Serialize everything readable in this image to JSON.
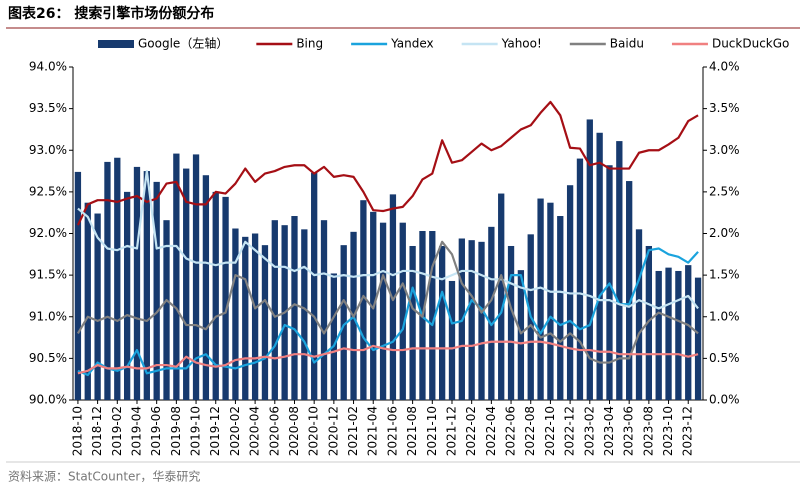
{
  "chart_data": {
    "type": "bar",
    "title": "图表26： 搜索引擎市场份额分布",
    "source": "资料来源：StatCounter，华泰研究",
    "categories": [
      "2018-10",
      null,
      "2018-12",
      null,
      "2019-02",
      null,
      "2019-04",
      null,
      "2019-06",
      null,
      "2019-08",
      null,
      "2019-10",
      null,
      "2019-12",
      null,
      "2020-02",
      null,
      "2020-04",
      null,
      "2020-06",
      null,
      "2020-08",
      null,
      "2020-10",
      null,
      "2020-12",
      null,
      "2021-02",
      null,
      "2021-04",
      null,
      "2021-06",
      null,
      "2021-08",
      null,
      "2021-10",
      null,
      "2021-12",
      null,
      "2022-02",
      null,
      "2022-04",
      null,
      "2022-06",
      null,
      "2022-08",
      null,
      "2022-10",
      null,
      "2022-12",
      null,
      "2023-02",
      null,
      "2023-04",
      null,
      "2023-06",
      null,
      "2023-08",
      null,
      "2023-10",
      null,
      "2023-12",
      null
    ],
    "series": [
      {
        "name": "Google（左轴）",
        "type": "bar",
        "axis": "y",
        "color": "#173a6e",
        "values": [
          92.74,
          92.37,
          92.24,
          92.86,
          92.91,
          92.5,
          92.8,
          92.75,
          92.62,
          92.16,
          92.96,
          92.78,
          92.95,
          92.7,
          92.5,
          92.44,
          92.06,
          91.96,
          92.0,
          91.86,
          92.16,
          92.1,
          92.21,
          92.05,
          92.73,
          92.16,
          91.52,
          91.86,
          92.02,
          92.4,
          92.26,
          92.13,
          92.47,
          92.13,
          91.85,
          92.03,
          92.03,
          91.85,
          91.43,
          91.94,
          91.92,
          91.9,
          92.08,
          92.48,
          91.85,
          91.56,
          91.99,
          92.42,
          92.37,
          92.21,
          92.58,
          92.9,
          93.37,
          93.21,
          92.82,
          93.11,
          92.63,
          92.05,
          91.85,
          91.55,
          91.59,
          91.55,
          91.62,
          91.47
        ]
      },
      {
        "name": "Bing",
        "type": "line",
        "axis": "y2",
        "color": "#a50f15",
        "values": [
          2.1,
          2.35,
          2.4,
          2.4,
          2.38,
          2.42,
          2.45,
          2.38,
          2.42,
          2.6,
          2.62,
          2.38,
          2.35,
          2.35,
          2.5,
          2.48,
          2.6,
          2.78,
          2.62,
          2.72,
          2.75,
          2.8,
          2.82,
          2.82,
          2.72,
          2.8,
          2.68,
          2.7,
          2.68,
          2.5,
          2.28,
          2.27,
          2.3,
          2.32,
          2.45,
          2.65,
          2.72,
          3.12,
          2.85,
          2.88,
          2.98,
          3.08,
          3.0,
          3.05,
          3.15,
          3.25,
          3.3,
          3.45,
          3.58,
          3.42,
          3.03,
          3.02,
          2.82,
          2.85,
          2.78,
          2.78,
          2.78,
          2.97,
          3.0,
          3.0,
          3.07,
          3.15,
          3.35,
          3.42
        ]
      },
      {
        "name": "Yandex",
        "type": "line",
        "axis": "y2",
        "color": "#1aa3dd",
        "values": [
          0.35,
          0.3,
          0.45,
          0.38,
          0.35,
          0.4,
          0.6,
          0.32,
          0.35,
          0.38,
          0.38,
          0.38,
          0.5,
          0.55,
          0.42,
          0.4,
          0.38,
          0.42,
          0.45,
          0.5,
          0.65,
          0.9,
          0.85,
          0.7,
          0.45,
          0.55,
          0.65,
          0.9,
          1.0,
          0.75,
          0.6,
          0.65,
          0.7,
          0.85,
          1.35,
          1.0,
          0.9,
          1.3,
          0.92,
          0.95,
          1.2,
          1.1,
          0.9,
          1.05,
          1.5,
          1.5,
          1.0,
          0.8,
          1.0,
          0.9,
          0.95,
          0.85,
          0.9,
          1.25,
          1.4,
          1.15,
          1.15,
          1.45,
          1.8,
          1.82,
          1.75,
          1.72,
          1.65,
          1.78
        ]
      },
      {
        "name": "Yahoo!",
        "type": "line",
        "axis": "y2",
        "color": "#c5e4f3",
        "values": [
          2.3,
          2.2,
          1.95,
          1.82,
          1.8,
          1.85,
          1.82,
          2.75,
          1.82,
          1.85,
          1.85,
          1.7,
          1.65,
          1.65,
          1.62,
          1.65,
          1.65,
          1.9,
          1.8,
          1.7,
          1.6,
          1.6,
          1.55,
          1.6,
          1.5,
          1.52,
          1.48,
          1.5,
          1.48,
          1.5,
          1.5,
          1.55,
          1.5,
          1.55,
          1.55,
          1.52,
          1.48,
          1.45,
          1.5,
          1.55,
          1.55,
          1.5,
          1.45,
          1.45,
          1.4,
          1.35,
          1.32,
          1.35,
          1.3,
          1.3,
          1.28,
          1.28,
          1.25,
          1.2,
          1.2,
          1.15,
          1.12,
          1.2,
          1.15,
          1.1,
          1.15,
          1.2,
          1.25,
          1.1
        ]
      },
      {
        "name": "Baidu",
        "type": "line",
        "axis": "y2",
        "color": "#808080",
        "values": [
          0.8,
          1.0,
          0.95,
          1.0,
          0.95,
          1.02,
          0.98,
          0.95,
          1.05,
          1.2,
          1.1,
          0.9,
          0.9,
          0.85,
          1.0,
          1.05,
          1.5,
          1.45,
          1.1,
          1.2,
          1.0,
          1.05,
          1.15,
          1.1,
          1.0,
          0.8,
          1.0,
          1.2,
          1.0,
          1.25,
          1.1,
          1.5,
          1.2,
          1.4,
          1.1,
          1.0,
          1.6,
          1.9,
          1.75,
          1.4,
          1.25,
          1.05,
          1.2,
          1.5,
          1.1,
          0.8,
          0.9,
          0.75,
          0.8,
          0.7,
          0.8,
          0.7,
          0.5,
          0.45,
          0.45,
          0.5,
          0.5,
          0.8,
          0.95,
          1.05,
          1.0,
          0.95,
          0.9,
          0.8
        ]
      },
      {
        "name": "DuckDuckGo",
        "type": "line",
        "axis": "y2",
        "color": "#f08080",
        "values": [
          0.32,
          0.35,
          0.42,
          0.38,
          0.38,
          0.4,
          0.38,
          0.38,
          0.42,
          0.42,
          0.4,
          0.52,
          0.45,
          0.42,
          0.4,
          0.42,
          0.48,
          0.5,
          0.5,
          0.52,
          0.5,
          0.52,
          0.55,
          0.55,
          0.52,
          0.55,
          0.58,
          0.62,
          0.6,
          0.6,
          0.65,
          0.62,
          0.6,
          0.6,
          0.62,
          0.62,
          0.62,
          0.62,
          0.62,
          0.65,
          0.65,
          0.68,
          0.7,
          0.7,
          0.7,
          0.68,
          0.7,
          0.7,
          0.68,
          0.65,
          0.62,
          0.6,
          0.6,
          0.58,
          0.58,
          0.55,
          0.55,
          0.55,
          0.55,
          0.55,
          0.55,
          0.55,
          0.52,
          0.55
        ]
      }
    ],
    "ylim": [
      90,
      94
    ],
    "yticks": [
      {
        "value": 90,
        "label": "90.0%"
      },
      {
        "value": 90.5,
        "label": "90.5%"
      },
      {
        "value": 91,
        "label": "91.0%"
      },
      {
        "value": 91.5,
        "label": "91.5%"
      },
      {
        "value": 92,
        "label": "92.0%"
      },
      {
        "value": 92.5,
        "label": "92.5%"
      },
      {
        "value": 93,
        "label": "93.0%"
      },
      {
        "value": 93.5,
        "label": "93.5%"
      },
      {
        "value": 94,
        "label": "94.0%"
      }
    ],
    "y2lim": [
      0,
      4
    ],
    "y2ticks": [
      {
        "value": 0,
        "label": "0.0%"
      },
      {
        "value": 0.5,
        "label": "0.5%"
      },
      {
        "value": 1,
        "label": "1.0%"
      },
      {
        "value": 1.5,
        "label": "1.5%"
      },
      {
        "value": 2,
        "label": "2.0%"
      },
      {
        "value": 2.5,
        "label": "2.5%"
      },
      {
        "value": 3,
        "label": "3.0%"
      },
      {
        "value": 3.5,
        "label": "3.5%"
      },
      {
        "value": 4,
        "label": "4.0%"
      }
    ],
    "legend": "top",
    "grid": false
  }
}
